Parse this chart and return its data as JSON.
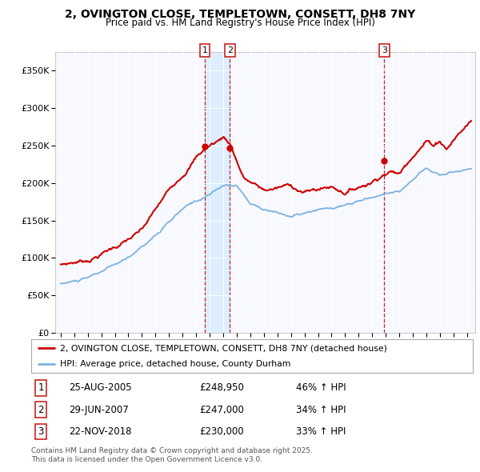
{
  "title": "2, OVINGTON CLOSE, TEMPLETOWN, CONSETT, DH8 7NY",
  "subtitle": "Price paid vs. HM Land Registry's House Price Index (HPI)",
  "legend_label_red": "2, OVINGTON CLOSE, TEMPLETOWN, CONSETT, DH8 7NY (detached house)",
  "legend_label_blue": "HPI: Average price, detached house, County Durham",
  "footnote": "Contains HM Land Registry data © Crown copyright and database right 2025.\nThis data is licensed under the Open Government Licence v3.0.",
  "transactions": [
    {
      "num": "1",
      "date": "25-AUG-2005",
      "price": "£248,950",
      "change": "46% ↑ HPI"
    },
    {
      "num": "2",
      "date": "29-JUN-2007",
      "price": "£247,000",
      "change": "34% ↑ HPI"
    },
    {
      "num": "3",
      "date": "22-NOV-2018",
      "price": "£230,000",
      "change": "33% ↑ HPI"
    }
  ],
  "vline_dates": [
    2005.647,
    2007.494,
    2018.896
  ],
  "vline_labels": [
    "1",
    "2",
    "3"
  ],
  "sale_prices": [
    248950,
    247000,
    230000
  ],
  "sale_years": [
    2005.647,
    2007.494,
    2018.896
  ],
  "ylim": [
    0,
    375000
  ],
  "xlim_start": 1994.6,
  "xlim_end": 2025.6,
  "plot_bg": "#f8f8ff",
  "shade_color": "#ddeeff"
}
